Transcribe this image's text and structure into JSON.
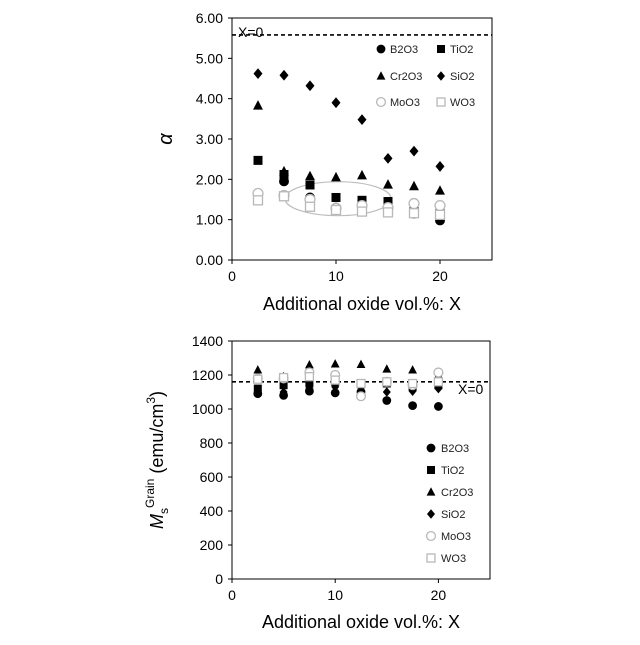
{
  "chart_data": [
    {
      "type": "scatter",
      "ylabel": "α",
      "xlabel": "Additional oxide vol.%: X",
      "xlim": [
        0,
        25
      ],
      "ylim": [
        0,
        6
      ],
      "xticks": [
        0,
        10,
        20
      ],
      "yticks": [
        "0.00",
        "1.00",
        "2.00",
        "3.00",
        "4.00",
        "5.00",
        "6.00"
      ],
      "grid": false,
      "legend_position": "top-right",
      "reference_line": {
        "label": "X=0",
        "y": 5.58
      },
      "series": [
        {
          "name": "B2O3",
          "marker": "circle-filled",
          "x": [
            2.5,
            5,
            7.5,
            10,
            12.5,
            15,
            17.5,
            20
          ],
          "y": [
            1.55,
            1.95,
            1.55,
            1.3,
            1.3,
            1.3,
            1.15,
            0.98
          ]
        },
        {
          "name": "TiO2",
          "marker": "square-filled",
          "x": [
            2.5,
            5,
            7.5,
            10,
            12.5,
            15,
            17.5,
            20
          ],
          "y": [
            2.47,
            2.12,
            1.86,
            1.55,
            1.48,
            1.45,
            1.3,
            1.22
          ]
        },
        {
          "name": "Cr2O3",
          "marker": "triangle-filled",
          "x": [
            2.5,
            5,
            7.5,
            10,
            12.5,
            15,
            17.5,
            20
          ],
          "y": [
            3.83,
            2.2,
            2.08,
            2.05,
            2.1,
            1.87,
            1.83,
            1.72
          ]
        },
        {
          "name": "SiO2",
          "marker": "diamond-filled",
          "x": [
            2.5,
            5,
            7.5,
            10,
            12.5,
            15,
            17.5,
            20
          ],
          "y": [
            4.62,
            4.58,
            4.32,
            3.9,
            3.48,
            2.52,
            2.7,
            2.32
          ]
        },
        {
          "name": "MoO3",
          "marker": "circle-open",
          "x": [
            2.5,
            5,
            7.5,
            10,
            12.5,
            15,
            17.5,
            20
          ],
          "y": [
            1.65,
            1.6,
            1.5,
            1.28,
            1.35,
            1.3,
            1.4,
            1.35
          ]
        },
        {
          "name": "WO3",
          "marker": "square-open",
          "x": [
            2.5,
            5,
            7.5,
            10,
            12.5,
            15,
            17.5,
            20
          ],
          "y": [
            1.48,
            1.58,
            1.32,
            1.24,
            1.2,
            1.18,
            1.16,
            1.12
          ]
        }
      ]
    },
    {
      "type": "scatter",
      "ylabel_main": "M",
      "ylabel_sub": "s",
      "ylabel_sup": "Grain",
      "ylabel_unit": " (emu/cm",
      "ylabel_unit_sup": "3",
      "ylabel_close": ")",
      "xlabel": "Additional oxide vol.%: X",
      "xlim": [
        0,
        25
      ],
      "ylim": [
        0,
        1400
      ],
      "xticks": [
        0,
        10,
        20
      ],
      "yticks": [
        "0",
        "200",
        "400",
        "600",
        "800",
        "1000",
        "1200",
        "1400"
      ],
      "grid": false,
      "legend_position": "right",
      "reference_line": {
        "label": "X=0",
        "y": 1160
      },
      "series": [
        {
          "name": "B2O3",
          "marker": "circle-filled",
          "x": [
            2.5,
            5,
            7.5,
            10,
            12.5,
            15,
            17.5,
            20
          ],
          "y": [
            1090,
            1080,
            1105,
            1095,
            1100,
            1050,
            1020,
            1015
          ]
        },
        {
          "name": "TiO2",
          "marker": "square-filled",
          "x": [
            2.5,
            5,
            7.5,
            10,
            12.5,
            15,
            17.5,
            20
          ],
          "y": [
            1120,
            1140,
            1150,
            1160,
            1145,
            1150,
            1130,
            1140
          ]
        },
        {
          "name": "Cr2O3",
          "marker": "triangle-filled",
          "x": [
            2.5,
            5,
            7.5,
            10,
            12.5,
            15,
            17.5,
            20
          ],
          "y": [
            1230,
            1190,
            1260,
            1265,
            1262,
            1235,
            1230,
            1200
          ]
        },
        {
          "name": "SiO2",
          "marker": "diamond-filled",
          "x": [
            2.5,
            5,
            7.5,
            10,
            12.5,
            15,
            17.5,
            20
          ],
          "y": [
            1110,
            1100,
            1120,
            1130,
            1110,
            1100,
            1105,
            1120
          ]
        },
        {
          "name": "MoO3",
          "marker": "circle-open",
          "x": [
            2.5,
            5,
            7.5,
            10,
            12.5,
            15,
            17.5,
            20
          ],
          "y": [
            1180,
            1180,
            1215,
            1200,
            1075,
            1160,
            1140,
            1215
          ]
        },
        {
          "name": "WO3",
          "marker": "square-open",
          "x": [
            2.5,
            5,
            7.5,
            10,
            12.5,
            15,
            17.5,
            20
          ],
          "y": [
            1175,
            1185,
            1190,
            1170,
            1150,
            1160,
            1150,
            1160
          ]
        }
      ]
    }
  ]
}
